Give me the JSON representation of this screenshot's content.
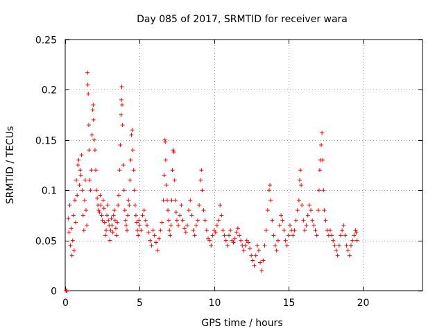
{
  "chart_data": {
    "type": "scatter",
    "title": "Day 085 of 2017, SRMTID for receiver wara",
    "xlabel": "GPS time / hours",
    "ylabel": "SRMTID / TECUs",
    "xlim": [
      0,
      24
    ],
    "ylim": [
      0,
      0.25
    ],
    "xticks": [
      0,
      5,
      10,
      15,
      20
    ],
    "xtick_labels": [
      "0",
      "5",
      "10",
      "15",
      "20"
    ],
    "yticks": [
      0,
      0.05,
      0.1,
      0.15,
      0.2,
      0.25
    ],
    "ytick_labels": [
      "0",
      "0.05",
      "0.1",
      "0.15",
      "0.2",
      "0.25"
    ],
    "grid": true,
    "marker": "+",
    "color": "#ff0000",
    "series": [
      {
        "name": "SRMTID",
        "points": [
          [
            0.05,
            0.0
          ],
          [
            0.1,
            0.0
          ],
          [
            0.12,
            0.0
          ],
          [
            0.2,
            0.072
          ],
          [
            0.25,
            0.058
          ],
          [
            0.3,
            0.085
          ],
          [
            0.35,
            0.045
          ],
          [
            0.4,
            0.062
          ],
          [
            0.45,
            0.035
          ],
          [
            0.5,
            0.05
          ],
          [
            0.55,
            0.075
          ],
          [
            0.6,
            0.04
          ],
          [
            0.65,
            0.09
          ],
          [
            0.7,
            0.068
          ],
          [
            0.75,
            0.11
          ],
          [
            0.8,
            0.095
          ],
          [
            0.85,
            0.125
          ],
          [
            0.9,
            0.13
          ],
          [
            0.95,
            0.105
          ],
          [
            1.0,
            0.12
          ],
          [
            1.05,
            0.115
          ],
          [
            1.1,
            0.135
          ],
          [
            1.15,
            0.1
          ],
          [
            1.2,
            0.075
          ],
          [
            1.25,
            0.06
          ],
          [
            1.3,
            0.09
          ],
          [
            1.35,
            0.11
          ],
          [
            1.4,
            0.08
          ],
          [
            1.45,
            0.065
          ],
          [
            1.5,
            0.217
          ],
          [
            1.52,
            0.205
          ],
          [
            1.55,
            0.196
          ],
          [
            1.58,
            0.165
          ],
          [
            1.6,
            0.14
          ],
          [
            1.65,
            0.11
          ],
          [
            1.7,
            0.1
          ],
          [
            1.75,
            0.12
          ],
          [
            1.8,
            0.155
          ],
          [
            1.85,
            0.18
          ],
          [
            1.88,
            0.185
          ],
          [
            1.9,
            0.17
          ],
          [
            1.95,
            0.15
          ],
          [
            2.0,
            0.14
          ],
          [
            2.05,
            0.12
          ],
          [
            2.1,
            0.1
          ],
          [
            2.15,
            0.092
          ],
          [
            2.2,
            0.085
          ],
          [
            2.25,
            0.08
          ],
          [
            2.3,
            0.078
          ],
          [
            2.35,
            0.095
          ],
          [
            2.4,
            0.085
          ],
          [
            2.45,
            0.075
          ],
          [
            2.5,
            0.07
          ],
          [
            2.55,
            0.09
          ],
          [
            2.6,
            0.082
          ],
          [
            2.65,
            0.068
          ],
          [
            2.7,
            0.055
          ],
          [
            2.75,
            0.06
          ],
          [
            2.8,
            0.075
          ],
          [
            2.85,
            0.085
          ],
          [
            2.9,
            0.07
          ],
          [
            2.95,
            0.065
          ],
          [
            3.0,
            0.05
          ],
          [
            3.05,
            0.06
          ],
          [
            3.1,
            0.072
          ],
          [
            3.15,
            0.065
          ],
          [
            3.2,
            0.058
          ],
          [
            3.25,
            0.075
          ],
          [
            3.3,
            0.08
          ],
          [
            3.35,
            0.07
          ],
          [
            3.4,
            0.062
          ],
          [
            3.45,
            0.055
          ],
          [
            3.5,
            0.068
          ],
          [
            3.55,
            0.085
          ],
          [
            3.6,
            0.095
          ],
          [
            3.65,
            0.12
          ],
          [
            3.7,
            0.145
          ],
          [
            3.75,
            0.175
          ],
          [
            3.78,
            0.19
          ],
          [
            3.8,
            0.203
          ],
          [
            3.82,
            0.185
          ],
          [
            3.85,
            0.165
          ],
          [
            3.9,
            0.125
          ],
          [
            3.95,
            0.1
          ],
          [
            4.0,
            0.08
          ],
          [
            4.05,
            0.07
          ],
          [
            4.1,
            0.065
          ],
          [
            4.15,
            0.06
          ],
          [
            4.2,
            0.075
          ],
          [
            4.25,
            0.09
          ],
          [
            4.3,
            0.085
          ],
          [
            4.35,
            0.11
          ],
          [
            4.4,
            0.13
          ],
          [
            4.45,
            0.155
          ],
          [
            4.5,
            0.16
          ],
          [
            4.55,
            0.14
          ],
          [
            4.6,
            0.12
          ],
          [
            4.65,
            0.1
          ],
          [
            4.7,
            0.085
          ],
          [
            4.75,
            0.075
          ],
          [
            4.8,
            0.068
          ],
          [
            4.85,
            0.06
          ],
          [
            4.9,
            0.055
          ],
          [
            4.95,
            0.07
          ],
          [
            5.0,
            0.065
          ],
          [
            5.1,
            0.06
          ],
          [
            5.2,
            0.075
          ],
          [
            5.3,
            0.08
          ],
          [
            5.4,
            0.07
          ],
          [
            5.5,
            0.065
          ],
          [
            5.6,
            0.058
          ],
          [
            5.7,
            0.05
          ],
          [
            5.8,
            0.045
          ],
          [
            5.9,
            0.06
          ],
          [
            6.0,
            0.055
          ],
          [
            6.1,
            0.048
          ],
          [
            6.2,
            0.04
          ],
          [
            6.3,
            0.052
          ],
          [
            6.4,
            0.06
          ],
          [
            6.5,
            0.068
          ],
          [
            6.6,
            0.09
          ],
          [
            6.65,
            0.115
          ],
          [
            6.7,
            0.15
          ],
          [
            6.72,
            0.148
          ],
          [
            6.75,
            0.13
          ],
          [
            6.8,
            0.105
          ],
          [
            6.85,
            0.09
          ],
          [
            6.9,
            0.08
          ],
          [
            6.95,
            0.07
          ],
          [
            7.0,
            0.06
          ],
          [
            7.05,
            0.055
          ],
          [
            7.1,
            0.065
          ],
          [
            7.15,
            0.09
          ],
          [
            7.2,
            0.12
          ],
          [
            7.25,
            0.14
          ],
          [
            7.3,
            0.138
          ],
          [
            7.35,
            0.11
          ],
          [
            7.4,
            0.09
          ],
          [
            7.45,
            0.078
          ],
          [
            7.5,
            0.07
          ],
          [
            7.6,
            0.065
          ],
          [
            7.7,
            0.075
          ],
          [
            7.8,
            0.085
          ],
          [
            7.9,
            0.07
          ],
          [
            8.0,
            0.062
          ],
          [
            8.1,
            0.058
          ],
          [
            8.2,
            0.065
          ],
          [
            8.3,
            0.08
          ],
          [
            8.4,
            0.09
          ],
          [
            8.5,
            0.075
          ],
          [
            8.6,
            0.06
          ],
          [
            8.7,
            0.055
          ],
          [
            8.8,
            0.065
          ],
          [
            8.9,
            0.07
          ],
          [
            9.0,
            0.085
          ],
          [
            9.1,
            0.11
          ],
          [
            9.15,
            0.12
          ],
          [
            9.2,
            0.1
          ],
          [
            9.3,
            0.08
          ],
          [
            9.4,
            0.07
          ],
          [
            9.5,
            0.06
          ],
          [
            9.6,
            0.052
          ],
          [
            9.7,
            0.05
          ],
          [
            9.8,
            0.045
          ],
          [
            9.9,
            0.055
          ],
          [
            10.0,
            0.06
          ],
          [
            10.1,
            0.058
          ],
          [
            10.2,
            0.065
          ],
          [
            10.3,
            0.07
          ],
          [
            10.4,
            0.085
          ],
          [
            10.5,
            0.075
          ],
          [
            10.6,
            0.06
          ],
          [
            10.7,
            0.055
          ],
          [
            10.8,
            0.05
          ],
          [
            10.9,
            0.045
          ],
          [
            11.0,
            0.055
          ],
          [
            11.1,
            0.06
          ],
          [
            11.2,
            0.05
          ],
          [
            11.3,
            0.048
          ],
          [
            11.4,
            0.052
          ],
          [
            11.5,
            0.058
          ],
          [
            11.6,
            0.062
          ],
          [
            11.7,
            0.055
          ],
          [
            11.8,
            0.05
          ],
          [
            11.9,
            0.045
          ],
          [
            12.0,
            0.04
          ],
          [
            12.1,
            0.045
          ],
          [
            12.2,
            0.05
          ],
          [
            12.3,
            0.048
          ],
          [
            12.4,
            0.042
          ],
          [
            12.5,
            0.035
          ],
          [
            12.6,
            0.03
          ],
          [
            12.7,
            0.025
          ],
          [
            12.8,
            0.035
          ],
          [
            12.9,
            0.045
          ],
          [
            13.0,
            0.04
          ],
          [
            13.1,
            0.028
          ],
          [
            13.2,
            0.02
          ],
          [
            13.3,
            0.03
          ],
          [
            13.4,
            0.045
          ],
          [
            13.5,
            0.06
          ],
          [
            13.6,
            0.08
          ],
          [
            13.7,
            0.1
          ],
          [
            13.75,
            0.105
          ],
          [
            13.8,
            0.09
          ],
          [
            13.9,
            0.07
          ],
          [
            14.0,
            0.055
          ],
          [
            14.1,
            0.045
          ],
          [
            14.2,
            0.04
          ],
          [
            14.3,
            0.05
          ],
          [
            14.4,
            0.065
          ],
          [
            14.5,
            0.075
          ],
          [
            14.6,
            0.07
          ],
          [
            14.7,
            0.06
          ],
          [
            14.8,
            0.05
          ],
          [
            14.9,
            0.045
          ],
          [
            15.0,
            0.055
          ],
          [
            15.1,
            0.065
          ],
          [
            15.2,
            0.06
          ],
          [
            15.3,
            0.055
          ],
          [
            15.4,
            0.06
          ],
          [
            15.5,
            0.07
          ],
          [
            15.6,
            0.08
          ],
          [
            15.7,
            0.09
          ],
          [
            15.75,
            0.11
          ],
          [
            15.8,
            0.12
          ],
          [
            15.85,
            0.105
          ],
          [
            15.9,
            0.085
          ],
          [
            16.0,
            0.07
          ],
          [
            16.1,
            0.06
          ],
          [
            16.2,
            0.065
          ],
          [
            16.3,
            0.075
          ],
          [
            16.4,
            0.085
          ],
          [
            16.5,
            0.08
          ],
          [
            16.6,
            0.07
          ],
          [
            16.7,
            0.065
          ],
          [
            16.8,
            0.06
          ],
          [
            16.9,
            0.055
          ],
          [
            17.0,
            0.08
          ],
          [
            17.05,
            0.1
          ],
          [
            17.1,
            0.12
          ],
          [
            17.15,
            0.13
          ],
          [
            17.2,
            0.145
          ],
          [
            17.25,
            0.157
          ],
          [
            17.3,
            0.13
          ],
          [
            17.35,
            0.1
          ],
          [
            17.4,
            0.08
          ],
          [
            17.5,
            0.07
          ],
          [
            17.6,
            0.06
          ],
          [
            17.7,
            0.055
          ],
          [
            17.8,
            0.06
          ],
          [
            17.9,
            0.055
          ],
          [
            18.0,
            0.05
          ],
          [
            18.1,
            0.045
          ],
          [
            18.2,
            0.04
          ],
          [
            18.3,
            0.035
          ],
          [
            18.4,
            0.045
          ],
          [
            18.5,
            0.055
          ],
          [
            18.6,
            0.06
          ],
          [
            18.7,
            0.065
          ],
          [
            18.8,
            0.055
          ],
          [
            18.9,
            0.045
          ],
          [
            19.0,
            0.04
          ],
          [
            19.1,
            0.035
          ],
          [
            19.2,
            0.045
          ],
          [
            19.3,
            0.05
          ],
          [
            19.4,
            0.055
          ],
          [
            19.5,
            0.06
          ],
          [
            19.55,
            0.058
          ],
          [
            19.6,
            0.05
          ]
        ]
      }
    ]
  }
}
